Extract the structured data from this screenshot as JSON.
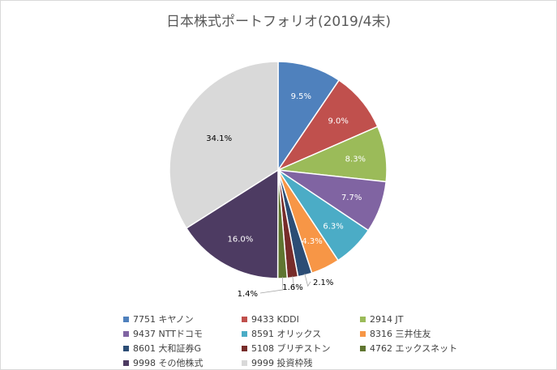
{
  "chart_data": {
    "type": "pie",
    "title": "日本株式ポートフォリオ(2019/4末)",
    "slices": [
      {
        "label": "7751 キヤノン",
        "value": 9.5,
        "display": "9.5%",
        "color": "#4F81BD",
        "label_color": "#ffffff"
      },
      {
        "label": "9433 KDDI",
        "value": 9.0,
        "display": "9.0%",
        "color": "#C0504D",
        "label_color": "#ffffff"
      },
      {
        "label": "2914 JT",
        "value": 8.3,
        "display": "8.3%",
        "color": "#9BBB59",
        "label_color": "#ffffff"
      },
      {
        "label": "9437 NTTドコモ",
        "value": 7.7,
        "display": "7.7%",
        "color": "#8064A2",
        "label_color": "#ffffff"
      },
      {
        "label": "8591 オリックス",
        "value": 6.3,
        "display": "6.3%",
        "color": "#4BACC6",
        "label_color": "#ffffff"
      },
      {
        "label": "8316 三井住友",
        "value": 4.3,
        "display": "4.3%",
        "color": "#F79646",
        "label_color": "#ffffff"
      },
      {
        "label": "8601 大和証券G",
        "value": 2.1,
        "display": "2.1%",
        "color": "#2C4D75",
        "label_color": "#000000"
      },
      {
        "label": "5108 ブリヂストン",
        "value": 1.6,
        "display": "1.6%",
        "color": "#772C2A",
        "label_color": "#000000"
      },
      {
        "label": "4762 エックスネット",
        "value": 1.4,
        "display": "1.4%",
        "color": "#5F7530",
        "label_color": "#000000"
      },
      {
        "label": "9998 その他株式",
        "value": 16.0,
        "display": "16.0%",
        "color": "#4D3B62",
        "label_color": "#ffffff"
      },
      {
        "label": "9999 投資枠残",
        "value": 34.1,
        "display": "34.1%",
        "color": "#D9D9D9",
        "label_color": "#000000"
      }
    ],
    "start_angle_deg": 0,
    "direction": "clockwise",
    "legend_position": "bottom"
  }
}
